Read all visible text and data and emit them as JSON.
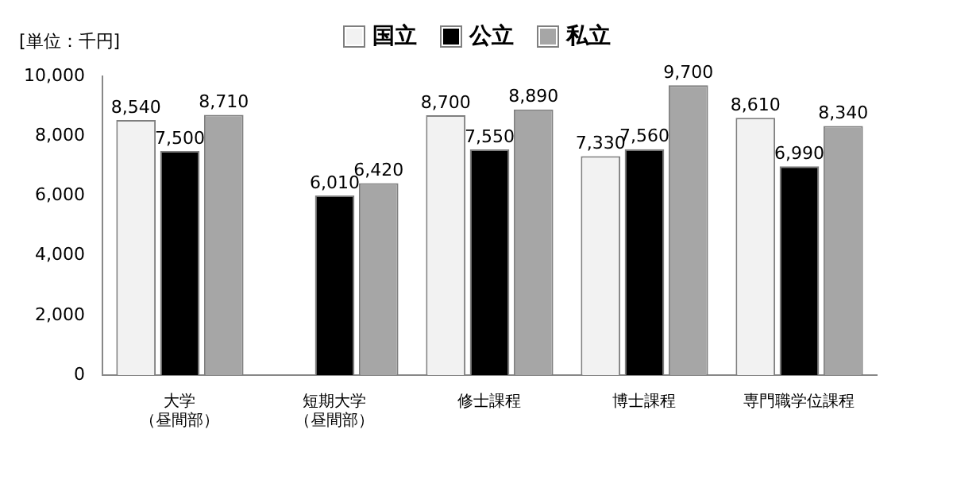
{
  "chart_data": {
    "type": "bar",
    "ylabel": "[単位：千円]",
    "categories": [
      "大学（昼間部）",
      "短期大学（昼間部）",
      "修士課程",
      "博士課程",
      "専門職学位課程"
    ],
    "series": [
      {
        "name": "国立",
        "color": "#f2f2f2",
        "values": [
          8540,
          null,
          8700,
          7330,
          8610
        ],
        "value_labels": [
          "8,540",
          null,
          "8,700",
          "7,330",
          "8,610"
        ]
      },
      {
        "name": "公立",
        "color": "#000000",
        "values": [
          7500,
          6010,
          7550,
          7560,
          6990
        ],
        "value_labels": [
          "7,500",
          "6,010",
          "7,550",
          "7,560",
          "6,990"
        ]
      },
      {
        "name": "私立",
        "color": "#a6a6a6",
        "values": [
          8710,
          6420,
          8890,
          9700,
          8340
        ],
        "value_labels": [
          "8,710",
          "6,420",
          "8,890",
          "9,700",
          "8,340"
        ]
      }
    ],
    "ylim": [
      0,
      10000
    ],
    "yticks": [
      0,
      {
        "value": 2000,
        "label": "2,000"
      },
      {
        "value": 4000,
        "label": "4,000"
      },
      {
        "value": 6000,
        "label": "6,000"
      },
      {
        "value": 8000,
        "label": "8,000"
      },
      {
        "value": 10000,
        "label": "10,000"
      }
    ],
    "grid": false,
    "legend": "top"
  }
}
